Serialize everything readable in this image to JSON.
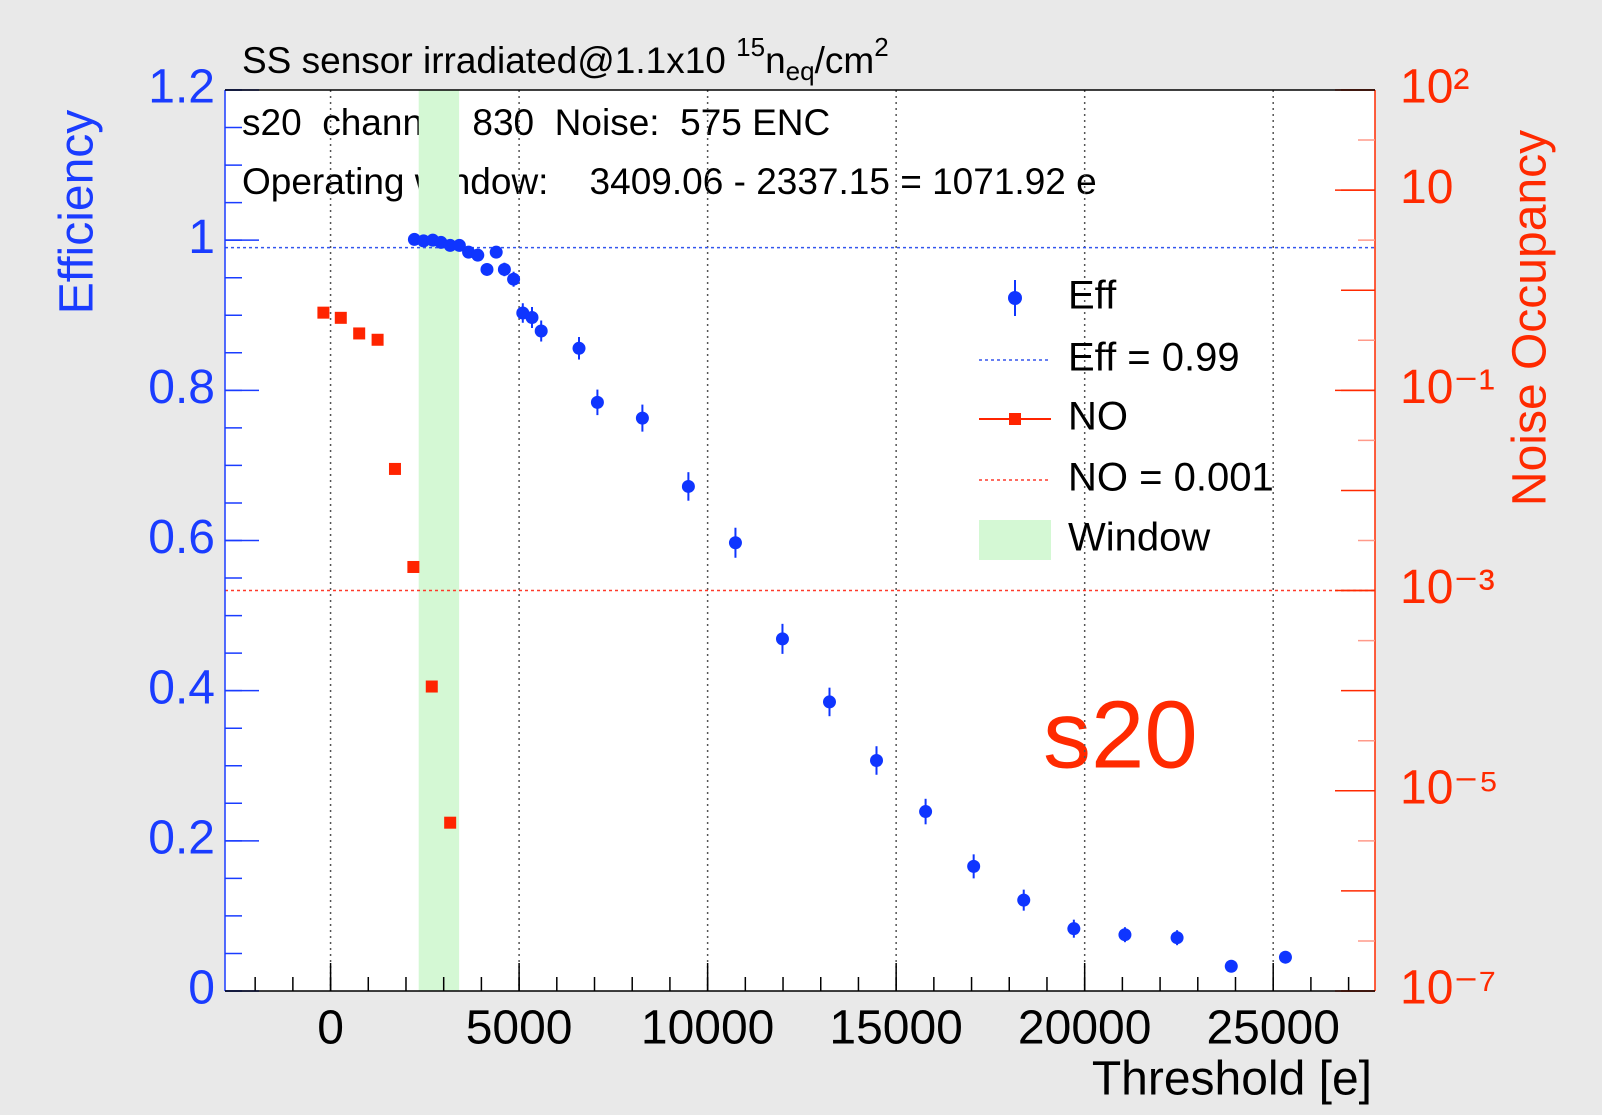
{
  "chart_data": {
    "type": "scatter",
    "title": [
      "SS sensor irradiated@1.1x10 ",
      "15",
      "n",
      "eq",
      "/cm",
      "2"
    ],
    "annotations": [
      "s20  channel: 830  Noise:  575 ENC",
      "Operating window:    3409.06 - 2337.15 = 1071.92 e",
      "s20"
    ],
    "x_label": "Threshold [e]",
    "y_label": "Efficiency",
    "y2_label": "Noise Occupancy",
    "xlim": [
      -2800,
      27700
    ],
    "xticks": [
      0,
      5000,
      10000,
      15000,
      20000,
      25000
    ],
    "ylim": [
      0,
      1.2
    ],
    "yticks": [
      0,
      0.2,
      0.4,
      0.6,
      0.8,
      1,
      1.2
    ],
    "y2lim": [
      1e-07,
      100
    ],
    "y2log": true,
    "y2ticks": [
      {
        "value": 100,
        "label": "10²"
      },
      10,
      {
        "value": 0.1,
        "label": "10⁻¹"
      },
      {
        "value": 0.001,
        "label": "10⁻³"
      },
      {
        "value": 1e-05,
        "label": "10⁻⁵"
      },
      {
        "value": 1e-07,
        "label": "10⁻⁷"
      }
    ],
    "xgrid": true,
    "series": [
      {
        "name": "Eff",
        "color": "#0f35ff",
        "axis": "y",
        "x": [
          2223,
          2467,
          2711,
          2928,
          3172,
          3416,
          3660,
          3904,
          4148,
          4393,
          4610,
          4854,
          5098,
          5342,
          5586,
          6589,
          7077,
          8270,
          9490,
          10738,
          11985,
          13232,
          14479,
          15781,
          17056,
          18384,
          19713,
          21068,
          22451,
          23888,
          25325
        ],
        "values": [
          1.001,
          0.999,
          1.0,
          0.997,
          0.993,
          0.993,
          0.984,
          0.98,
          0.961,
          0.984,
          0.961,
          0.948,
          0.903,
          0.897,
          0.879,
          0.856,
          0.784,
          0.763,
          0.672,
          0.597,
          0.469,
          0.385,
          0.307,
          0.239,
          0.166,
          0.121,
          0.083,
          0.075,
          0.071,
          0.033,
          0.045
        ],
        "errors": [
          0.003,
          0.003,
          0.003,
          0.004,
          0.004,
          0.005,
          0.006,
          0.006,
          0.008,
          0.007,
          0.009,
          0.01,
          0.013,
          0.014,
          0.014,
          0.015,
          0.017,
          0.018,
          0.019,
          0.02,
          0.02,
          0.019,
          0.019,
          0.017,
          0.016,
          0.014,
          0.012,
          0.01,
          0.01,
          0.006,
          0.008
        ]
      },
      {
        "name": "NO",
        "color": "#ff2400",
        "axis": "y2",
        "x": [
          -190,
          271,
          759,
          1247,
          1708,
          2196,
          2684,
          3172
        ],
        "values": [
          0.597,
          0.53,
          0.37,
          0.32,
          0.0164,
          0.00172,
          0.00011,
          4.8e-06
        ]
      }
    ],
    "lines": [
      {
        "name": "Eff = 0.99",
        "value": 0.99,
        "axis": "y",
        "color": "#3355ee"
      },
      {
        "name": "NO = 0.001",
        "value": 0.001,
        "axis": "y2",
        "color": "#ff3a2a"
      }
    ],
    "window": {
      "name": "Window",
      "from": 2337.15,
      "to": 3409.06,
      "color": "#d4f8d4"
    }
  }
}
